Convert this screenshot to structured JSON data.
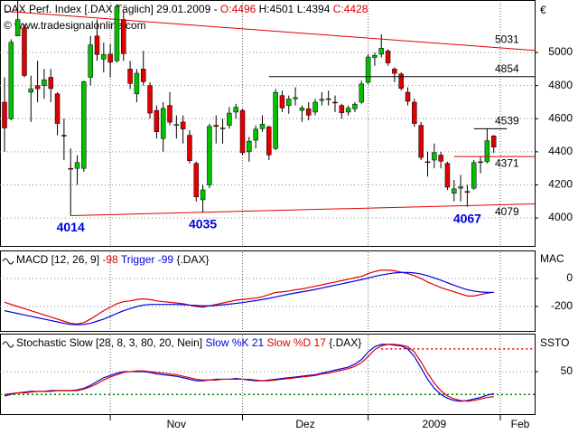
{
  "header": {
    "title": "DAX Perf. Index [.DAX  Täglich] 29.01.2009 -",
    "ohlc": [
      "O:4496",
      "H:4501",
      "L:4394",
      "C:4428"
    ],
    "watermark": "© www.tradesignalonline.com",
    "currency": "€"
  },
  "chart_data": [
    {
      "type": "candlestick",
      "up_color": "#00c000",
      "down_color": "#e00000",
      "xlim": [
        -0.683,
        80.19
      ],
      "ylim": [
        3831,
        5290
      ],
      "yticks": [
        4000,
        4200,
        4400,
        4600,
        4800,
        5000
      ],
      "open": [
        4700,
        4600,
        5100,
        5150,
        4760,
        4800,
        4800,
        4850,
        4750,
        4500,
        4300,
        4300,
        4300,
        4850,
        5100,
        4960,
        4990,
        4950,
        5200,
        4900,
        4750,
        4900,
        4800,
        4650,
        4480,
        4680,
        4560,
        4580,
        4500,
        4330,
        4110,
        4200,
        4560,
        4540,
        4560,
        4640,
        4650,
        4400,
        4470,
        4540,
        4550,
        4420,
        4740,
        4680,
        4720,
        4650,
        4660,
        4640,
        4710,
        4720,
        4700,
        4680,
        4640,
        4660,
        4700,
        4820,
        4970,
        4990,
        5010,
        4900,
        4870,
        4760,
        4700,
        4560,
        4340,
        4350,
        4380,
        4330,
        4150,
        4180,
        4160,
        4180,
        4340,
        4340,
        4496
      ],
      "high": [
        4850,
        5080,
        5380,
        5170,
        4860,
        4950,
        4900,
        4900,
        4760,
        4600,
        4420,
        4380,
        4830,
        5100,
        5200,
        5060,
        5050,
        5290,
        5250,
        4950,
        4900,
        5010,
        4820,
        4680,
        4700,
        4760,
        4620,
        4620,
        4530,
        4340,
        4200,
        4570,
        4620,
        4600,
        4670,
        4690,
        4660,
        4490,
        4560,
        4620,
        4560,
        4780,
        4770,
        4740,
        4790,
        4680,
        4700,
        4720,
        4760,
        4770,
        4740,
        4690,
        4680,
        4700,
        4830,
        4990,
        5000,
        5110,
        5020,
        4910,
        4880,
        4790,
        4720,
        4580,
        4400,
        4450,
        4400,
        4340,
        4230,
        4260,
        4200,
        4350,
        4370,
        4539,
        4501
      ],
      "low": [
        4400,
        4590,
        5100,
        4850,
        4580,
        4700,
        4720,
        4700,
        4500,
        4350,
        4014,
        4200,
        4280,
        4800,
        4950,
        4880,
        4850,
        4940,
        4950,
        4780,
        4700,
        4800,
        4600,
        4480,
        4400,
        4560,
        4480,
        4450,
        4330,
        4100,
        4035,
        4180,
        4450,
        4450,
        4540,
        4600,
        4380,
        4340,
        4420,
        4520,
        4350,
        4410,
        4640,
        4630,
        4680,
        4580,
        4590,
        4620,
        4680,
        4680,
        4640,
        4600,
        4620,
        4640,
        4690,
        4810,
        4920,
        4970,
        4920,
        4820,
        4770,
        4680,
        4550,
        4350,
        4250,
        4300,
        4300,
        4170,
        4100,
        4100,
        4067,
        4170,
        4270,
        4330,
        4394
      ],
      "close": [
        4544,
        5062,
        5199,
        4861,
        4781,
        4781,
        4835,
        4782,
        4571,
        4497,
        4296,
        4335,
        4823,
        5046,
        4988,
        4988,
        4941,
        5278,
        4993,
        4813,
        4875,
        4823,
        4634,
        4521,
        4662,
        4579,
        4565,
        4538,
        4346,
        4127,
        4170,
        4554,
        4553,
        4544,
        4634,
        4669,
        4394,
        4464,
        4537,
        4567,
        4381,
        4759,
        4665,
        4719,
        4728,
        4665,
        4621,
        4700,
        4717,
        4721,
        4696,
        4636,
        4664,
        4688,
        4810,
        4973,
        4983,
        5026,
        4937,
        4874,
        4783,
        4705,
        4571,
        4366,
        4336,
        4396,
        4343,
        4186,
        4176,
        4189,
        4159,
        4335,
        4335,
        4467,
        4428
      ],
      "levels": [
        {
          "value": 4854,
          "from_index": 40,
          "color": "#000000"
        },
        {
          "value": 4539,
          "from_index": 71,
          "to_index": 76,
          "color": "#000000"
        },
        {
          "value": 4371,
          "from_index": 68,
          "color": "#e00000"
        }
      ],
      "trendlines": [
        {
          "from_index": 0,
          "from_value": 5250,
          "to_index": 74,
          "value": 5031,
          "color": "#e00000"
        },
        {
          "from_index": 10,
          "from_value": 4014,
          "to_index": 74,
          "value": 4079,
          "color": "#e00000"
        }
      ],
      "low_labels": [
        {
          "index": 10,
          "value": 4014
        },
        {
          "index": 30,
          "value": 4035
        },
        {
          "index": 70,
          "value": 4067
        }
      ]
    },
    {
      "type": "line",
      "title": "MACD [12, 26, 9]",
      "source": "{.DAX}",
      "axis_label": "MAC",
      "xlim": [
        -0.683,
        80.19
      ],
      "ylim": [
        -368,
        194
      ],
      "yticks": [
        0,
        -200
      ],
      "grid": true,
      "series": [
        {
          "name": "-98",
          "color": "#e00000",
          "values": [
            -170,
            -185,
            -200,
            -215,
            -230,
            -245,
            -260,
            -275,
            -290,
            -305,
            -320,
            -325,
            -315,
            -290,
            -260,
            -230,
            -205,
            -180,
            -165,
            -160,
            -150,
            -145,
            -150,
            -160,
            -165,
            -170,
            -175,
            -180,
            -190,
            -200,
            -205,
            -195,
            -185,
            -175,
            -165,
            -155,
            -150,
            -145,
            -140,
            -130,
            -115,
            -100,
            -95,
            -90,
            -80,
            -75,
            -65,
            -55,
            -45,
            -35,
            -25,
            -15,
            -5,
            5,
            15,
            35,
            50,
            60,
            60,
            55,
            45,
            35,
            20,
            0,
            -25,
            -45,
            -65,
            -80,
            -95,
            -110,
            -125,
            -125,
            -115,
            -105,
            -98
          ]
        },
        {
          "name": "Trigger -99",
          "color": "#0000e0",
          "values": [
            -230,
            -240,
            -250,
            -260,
            -270,
            -280,
            -290,
            -300,
            -310,
            -320,
            -328,
            -330,
            -328,
            -320,
            -305,
            -290,
            -270,
            -250,
            -230,
            -215,
            -200,
            -190,
            -185,
            -185,
            -185,
            -185,
            -185,
            -187,
            -190,
            -193,
            -195,
            -195,
            -192,
            -188,
            -183,
            -178,
            -172,
            -165,
            -158,
            -150,
            -142,
            -132,
            -122,
            -112,
            -103,
            -95,
            -87,
            -78,
            -68,
            -58,
            -48,
            -38,
            -28,
            -18,
            -8,
            3,
            15,
            25,
            33,
            40,
            43,
            43,
            40,
            32,
            20,
            5,
            -12,
            -30,
            -48,
            -65,
            -80,
            -90,
            -96,
            -99,
            -99
          ]
        }
      ]
    },
    {
      "type": "line",
      "title": "Stochastic Slow [28, 8, 3, 80, 20, Nein]",
      "source": "{.DAX}",
      "axis_label": "SSTO",
      "xlim": [
        -0.683,
        80.19
      ],
      "ylim": [
        -6,
        99
      ],
      "yticks": [
        50
      ],
      "xticks": [
        {
          "value": 26,
          "label": "Nov"
        },
        {
          "value": 45.5,
          "label": "Dez"
        },
        {
          "value": 65,
          "label": "2009"
        },
        {
          "value": 78,
          "label": "Feb"
        }
      ],
      "month_lines": [
        16,
        36,
        55,
        75
      ],
      "levels": [
        {
          "value": 80,
          "from_index": 57,
          "color": "#e00000"
        },
        {
          "value": 20,
          "color": "#008000"
        }
      ],
      "series": [
        {
          "name": "Slow %K 21",
          "color": "#0000e0",
          "values": [
            18,
            20,
            22,
            23,
            24,
            24,
            24,
            25,
            25,
            25,
            25,
            26,
            28,
            32,
            37,
            42,
            45,
            48,
            50,
            50,
            50,
            50,
            49,
            47,
            46,
            45,
            44,
            42,
            40,
            38,
            38,
            39,
            40,
            40,
            40,
            41,
            40,
            39,
            38,
            38,
            39,
            40,
            41,
            42,
            43,
            44,
            45,
            46,
            48,
            50,
            52,
            54,
            56,
            60,
            66,
            76,
            83,
            86,
            86,
            85,
            84,
            80,
            70,
            55,
            40,
            28,
            20,
            15,
            12,
            11,
            12,
            14,
            16,
            19,
            21
          ]
        },
        {
          "name": "Slow %D 17",
          "color": "#e00000",
          "values": [
            20,
            21,
            22,
            22,
            23,
            24,
            24,
            24,
            25,
            25,
            25,
            25,
            27,
            30,
            34,
            39,
            43,
            46,
            49,
            50,
            51,
            51,
            50,
            49,
            48,
            47,
            46,
            44,
            42,
            40,
            39,
            39,
            39,
            40,
            40,
            40,
            40,
            40,
            39,
            38,
            38,
            39,
            40,
            41,
            42,
            43,
            44,
            45,
            47,
            48,
            50,
            52,
            54,
            57,
            62,
            70,
            79,
            84,
            86,
            86,
            85,
            83,
            76,
            63,
            48,
            35,
            25,
            18,
            14,
            12,
            11,
            12,
            14,
            16,
            17
          ]
        }
      ]
    }
  ]
}
